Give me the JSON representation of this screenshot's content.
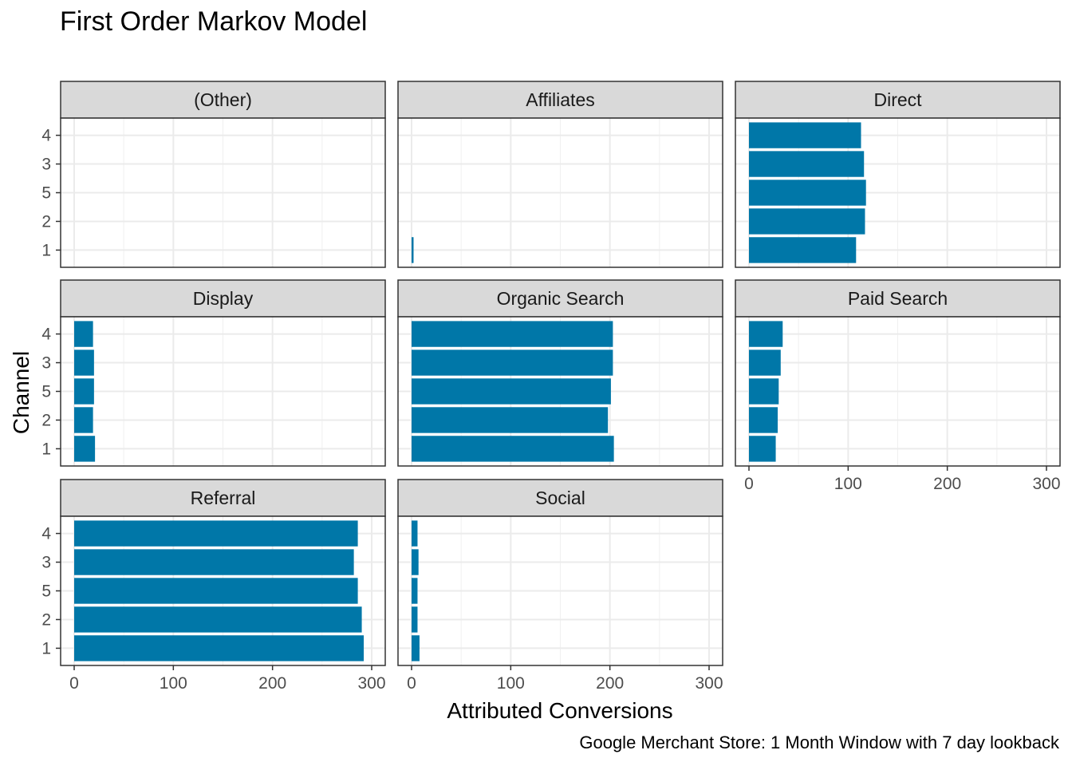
{
  "chart_data": {
    "type": "bar",
    "orientation": "horizontal",
    "facet": "wrap",
    "title": "First Order Markov Model",
    "xlabel": "Attributed Conversions",
    "ylabel": "Channel",
    "caption": "Google Merchant Store: 1 Month Window with 7 day lookback",
    "categories": [
      "1",
      "2",
      "5",
      "3",
      "4"
    ],
    "xlim": [
      0,
      300
    ],
    "x_ticks": [
      0,
      100,
      200,
      300
    ],
    "grid": true,
    "bar_color": "#0077A8",
    "panels": [
      {
        "label": "(Other)",
        "values": [
          0,
          0,
          0,
          0,
          0
        ]
      },
      {
        "label": "Affiliates",
        "values": [
          2,
          0,
          0,
          0,
          0
        ]
      },
      {
        "label": "Direct",
        "values": [
          108,
          117,
          118,
          116,
          113
        ]
      },
      {
        "label": "Display",
        "values": [
          21,
          19,
          20,
          20,
          19
        ]
      },
      {
        "label": "Organic Search",
        "values": [
          204,
          198,
          201,
          203,
          203
        ]
      },
      {
        "label": "Paid Search",
        "values": [
          27,
          29,
          30,
          32,
          34
        ]
      },
      {
        "label": "Referral",
        "values": [
          292,
          290,
          286,
          282,
          286
        ]
      },
      {
        "label": "Social",
        "values": [
          8,
          6,
          6,
          7,
          6
        ]
      }
    ]
  }
}
